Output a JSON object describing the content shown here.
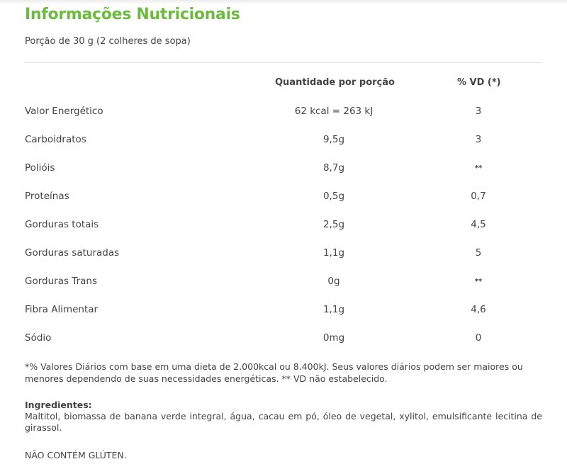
{
  "title": "Informações Nutricionais",
  "portion": "Porção de 30 g (2 colheres de sopa)",
  "table": {
    "headers": {
      "quantity": "Quantidade por porção",
      "vd": "% VD (*)"
    },
    "rows": [
      {
        "name": "Valor Energético",
        "quantity": "62 kcal = 263 kJ",
        "vd": "3"
      },
      {
        "name": "Carboidratos",
        "quantity": "9,5g",
        "vd": "3"
      },
      {
        "name": "Polióis",
        "quantity": "8,7g",
        "vd": "**"
      },
      {
        "name": "Proteínas",
        "quantity": "0,5g",
        "vd": "0,7"
      },
      {
        "name": "Gorduras totais",
        "quantity": "2,5g",
        "vd": "4,5"
      },
      {
        "name": "Gorduras saturadas",
        "quantity": "1,1g",
        "vd": "5"
      },
      {
        "name": "Gorduras Trans",
        "quantity": "0g",
        "vd": "**"
      },
      {
        "name": "Fibra Alimentar",
        "quantity": "1,1g",
        "vd": "4,6"
      },
      {
        "name": "Sódio",
        "quantity": "0mg",
        "vd": "0"
      }
    ]
  },
  "footnote": "*% Valores Diários com base em uma dieta de 2.000kcal ou 8.400kJ. Seus valores diários podem ser maiores ou menores dependendo de suas necessidades energéticas. ** VD não estabelecido.",
  "ingredients": {
    "label": "Ingredientes:",
    "text": "Maltitol, biomassa de banana verde integral, água, cacau em pó, óleo de vegetal, xylitol, emulsificante lecitina de girassol."
  },
  "gluten_notice": "NÃO CONTÉM GLÚTEN."
}
